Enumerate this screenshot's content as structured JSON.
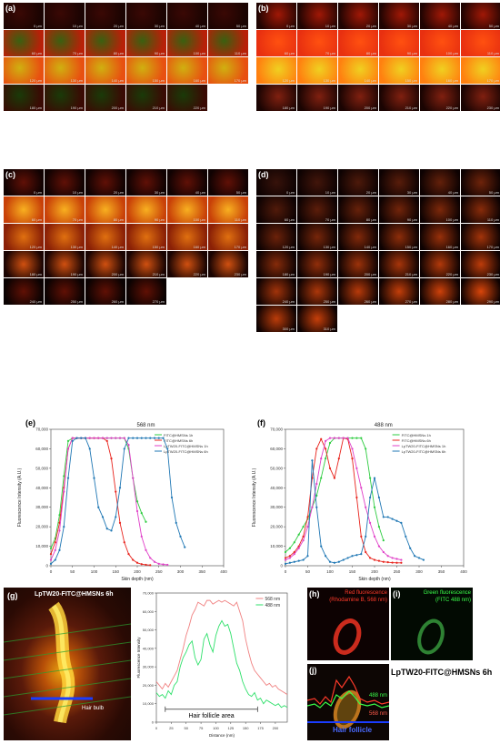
{
  "panels": {
    "a": {
      "label": "(a)",
      "theme": "mixed",
      "cols": 6,
      "x": 4,
      "y": 3,
      "depths": [
        "0 μm",
        "10 μm",
        "20 μm",
        "30 μm",
        "40 μm",
        "50 μm",
        "60 μm",
        "70 μm",
        "80 μm",
        "90 μm",
        "100 μm",
        "110 μm",
        "120 μm",
        "130 μm",
        "140 μm",
        "150 μm",
        "160 μm",
        "170 μm",
        "180 μm",
        "190 μm",
        "200 μm",
        "210 μm",
        "220 μm"
      ]
    },
    "b": {
      "label": "(b)",
      "theme": "bright",
      "cols": 6,
      "x": 282,
      "y": 3,
      "depths": [
        "0 μm",
        "10 μm",
        "20 μm",
        "30 μm",
        "40 μm",
        "50 μm",
        "60 μm",
        "70 μm",
        "80 μm",
        "90 μm",
        "100 μm",
        "110 μm",
        "120 μm",
        "130 μm",
        "140 μm",
        "150 μm",
        "160 μm",
        "170 μm",
        "180 μm",
        "190 μm",
        "200 μm",
        "210 μm",
        "220 μm",
        "230 μm"
      ]
    },
    "c": {
      "label": "(c)",
      "theme": "orange",
      "cols": 6,
      "x": 4,
      "y": 186,
      "depths": [
        "0 μm",
        "10 μm",
        "20 μm",
        "30 μm",
        "40 μm",
        "50 μm",
        "60 μm",
        "70 μm",
        "80 μm",
        "90 μm",
        "100 μm",
        "110 μm",
        "120 μm",
        "130 μm",
        "140 μm",
        "150 μm",
        "160 μm",
        "170 μm",
        "180 μm",
        "190 μm",
        "200 μm",
        "210 μm",
        "220 μm",
        "230 μm",
        "240 μm",
        "250 μm",
        "260 μm",
        "270 μm"
      ]
    },
    "d": {
      "label": "(d)",
      "theme": "dark",
      "cols": 6,
      "x": 282,
      "y": 186,
      "depths": [
        "0 μm",
        "10 μm",
        "20 μm",
        "30 μm",
        "40 μm",
        "50 μm",
        "60 μm",
        "70 μm",
        "80 μm",
        "90 μm",
        "100 μm",
        "110 μm",
        "120 μm",
        "130 μm",
        "140 μm",
        "150 μm",
        "160 μm",
        "170 μm",
        "180 μm",
        "190 μm",
        "200 μm",
        "210 μm",
        "220 μm",
        "230 μm",
        "240 μm",
        "250 μm",
        "260 μm",
        "270 μm",
        "280 μm",
        "290 μm",
        "300 μm",
        "310 μm"
      ]
    }
  },
  "chart_data": [
    {
      "id": "e",
      "label": "(e)",
      "type": "line",
      "title": "568 nm",
      "xlabel": "Skin depth (nm)",
      "ylabel": "Fluorescence Intensity (A.U.)",
      "xlim": [
        0,
        400
      ],
      "ylim": [
        0,
        70000
      ],
      "xticks": [
        0,
        50,
        100,
        150,
        200,
        250,
        300,
        350,
        400
      ],
      "yticks": [
        0,
        10000,
        20000,
        30000,
        40000,
        50000,
        60000,
        70000
      ],
      "ytick_labels": [
        "0",
        "10,000",
        "20,000",
        "30,000",
        "40,000",
        "50,000",
        "60,000",
        "70,000"
      ],
      "legend_position": "top-right",
      "series": [
        {
          "name": "FITC@HMSNs 1h",
          "color": "#2ecc40",
          "x": [
            0,
            10,
            20,
            30,
            40,
            50,
            60,
            70,
            80,
            90,
            100,
            110,
            120,
            130,
            140,
            150,
            160,
            170,
            180,
            190,
            200,
            210,
            220
          ],
          "y": [
            9000,
            14000,
            26000,
            46000,
            64000,
            65500,
            65500,
            65500,
            65500,
            65500,
            65500,
            65500,
            65500,
            65500,
            65500,
            65500,
            65500,
            65500,
            60000,
            45000,
            33000,
            27000,
            22500
          ]
        },
        {
          "name": "FITC@HMSNs 6h",
          "color": "#e8231c",
          "x": [
            0,
            10,
            20,
            30,
            40,
            50,
            60,
            70,
            80,
            90,
            100,
            110,
            120,
            130,
            140,
            150,
            160,
            170,
            180,
            190,
            200,
            210,
            220,
            230
          ],
          "y": [
            6000,
            12000,
            22000,
            40000,
            60000,
            65500,
            65500,
            65500,
            65500,
            65500,
            65500,
            65500,
            65500,
            64000,
            55000,
            38000,
            22000,
            12000,
            6000,
            3000,
            1500,
            800,
            500,
            300
          ]
        },
        {
          "name": "LpTW20-FITC@HMSNs 1h",
          "color": "#e040c8",
          "x": [
            0,
            10,
            20,
            30,
            40,
            50,
            60,
            70,
            80,
            90,
            100,
            110,
            120,
            130,
            140,
            150,
            160,
            170,
            180,
            190,
            200,
            210,
            220,
            230,
            240,
            250,
            260,
            270
          ],
          "y": [
            3000,
            8000,
            18000,
            38000,
            60000,
            65500,
            65500,
            65500,
            65500,
            65500,
            65500,
            65500,
            65500,
            65500,
            65500,
            65500,
            65500,
            65500,
            62000,
            45000,
            28000,
            15000,
            8000,
            4000,
            2000,
            1000,
            700,
            500
          ]
        },
        {
          "name": "LpTW20-FITC@HMSNs 6h",
          "color": "#1f77b4",
          "x": [
            0,
            10,
            20,
            30,
            40,
            50,
            60,
            70,
            80,
            90,
            100,
            110,
            120,
            130,
            140,
            150,
            160,
            170,
            180,
            190,
            200,
            210,
            220,
            230,
            240,
            250,
            260,
            270,
            280,
            290,
            300,
            310
          ],
          "y": [
            1000,
            3000,
            8000,
            20000,
            45000,
            64000,
            65500,
            65500,
            65500,
            60000,
            45000,
            30000,
            25000,
            19000,
            18000,
            25000,
            40000,
            60000,
            65500,
            65500,
            65500,
            65500,
            65500,
            65500,
            65500,
            65500,
            65500,
            60000,
            35000,
            22000,
            15000,
            9500
          ]
        }
      ]
    },
    {
      "id": "f",
      "label": "(f)",
      "type": "line",
      "title": "488 nm",
      "xlabel": "Skin depth (nm)",
      "ylabel": "Fluorescence Intensity (A.U.)",
      "xlim": [
        0,
        400
      ],
      "ylim": [
        0,
        70000
      ],
      "xticks": [
        0,
        50,
        100,
        150,
        200,
        250,
        300,
        350,
        400
      ],
      "yticks": [
        0,
        10000,
        20000,
        30000,
        40000,
        50000,
        60000,
        70000
      ],
      "ytick_labels": [
        "0",
        "10,000",
        "20,000",
        "30,000",
        "40,000",
        "50,000",
        "60,000",
        "70,000"
      ],
      "legend_position": "top-right",
      "series": [
        {
          "name": "FITC@HMSNs 1h",
          "color": "#2ecc40",
          "x": [
            0,
            10,
            20,
            30,
            40,
            50,
            60,
            70,
            80,
            90,
            100,
            110,
            120,
            130,
            140,
            150,
            160,
            170,
            180,
            190,
            200,
            210,
            220
          ],
          "y": [
            7000,
            9000,
            12000,
            16000,
            20000,
            24000,
            30000,
            36000,
            45000,
            55000,
            63000,
            65500,
            65500,
            65500,
            65500,
            65500,
            65500,
            65500,
            60000,
            45000,
            30000,
            20000,
            13000
          ]
        },
        {
          "name": "FITC@HMSNs 6h",
          "color": "#e8231c",
          "x": [
            0,
            10,
            20,
            30,
            40,
            50,
            60,
            70,
            80,
            90,
            100,
            110,
            120,
            130,
            140,
            150,
            160,
            170,
            180,
            190,
            200,
            210,
            220,
            230,
            240,
            250,
            260
          ],
          "y": [
            4000,
            5000,
            7000,
            10000,
            15000,
            25000,
            45000,
            60000,
            65000,
            60000,
            50000,
            45000,
            55000,
            65500,
            65000,
            55000,
            35000,
            15000,
            7000,
            4000,
            3000,
            2500,
            2000,
            1800,
            1600,
            1500,
            1500
          ]
        },
        {
          "name": "LpTW20-FITC@HMSNs 1h",
          "color": "#e040c8",
          "x": [
            0,
            10,
            20,
            30,
            40,
            50,
            60,
            70,
            80,
            90,
            100,
            110,
            120,
            130,
            140,
            150,
            160,
            170,
            180,
            190,
            200,
            210,
            220,
            230,
            240,
            250,
            260
          ],
          "y": [
            3000,
            4000,
            6000,
            9000,
            13000,
            20000,
            30000,
            42000,
            55000,
            64000,
            65500,
            65500,
            65500,
            65500,
            65500,
            60000,
            50000,
            40000,
            30000,
            22000,
            15000,
            10000,
            7000,
            5000,
            4000,
            3500,
            3000
          ]
        },
        {
          "name": "LpTW20-FITC@HMSNs 6h",
          "color": "#1f77b4",
          "x": [
            0,
            10,
            20,
            30,
            40,
            50,
            60,
            70,
            80,
            90,
            100,
            110,
            120,
            130,
            140,
            150,
            160,
            170,
            180,
            190,
            200,
            210,
            220,
            230,
            240,
            250,
            260,
            270,
            280,
            290,
            300,
            310
          ],
          "y": [
            1000,
            1500,
            2000,
            2500,
            3000,
            5000,
            54000,
            30000,
            10000,
            5000,
            2000,
            1500,
            2000,
            3000,
            4000,
            5000,
            5500,
            6000,
            15000,
            35000,
            45000,
            35000,
            25000,
            25000,
            24000,
            23000,
            22000,
            15000,
            9000,
            5000,
            4000,
            3000
          ]
        }
      ]
    },
    {
      "id": "g-profile",
      "type": "line",
      "title": "",
      "xlabel": "Distance (nm)",
      "ylabel": "Fluorescence Intensity",
      "xlim": [
        0,
        220
      ],
      "ylim": [
        0,
        70000
      ],
      "xticks": [
        0,
        25,
        50,
        75,
        100,
        125,
        150,
        175,
        200
      ],
      "yticks": [
        0,
        10000,
        20000,
        30000,
        40000,
        50000,
        60000,
        70000
      ],
      "ytick_labels": [
        "0",
        "10,000",
        "20,000",
        "30,000",
        "40,000",
        "50,000",
        "60,000",
        "70,000"
      ],
      "legend_position": "top-right",
      "annotation": "Hair follicle area",
      "annotation_range": [
        15,
        170
      ],
      "series": [
        {
          "name": "568 nm",
          "color": "#f08080",
          "x": [
            0,
            5,
            10,
            15,
            20,
            25,
            30,
            35,
            40,
            45,
            50,
            55,
            60,
            65,
            70,
            75,
            80,
            85,
            90,
            95,
            100,
            105,
            110,
            115,
            120,
            125,
            130,
            135,
            140,
            145,
            150,
            155,
            160,
            165,
            170,
            175,
            180,
            185,
            190,
            195,
            200,
            205,
            210,
            215,
            220
          ],
          "y": [
            22000,
            20000,
            18000,
            21000,
            19000,
            22000,
            25000,
            28000,
            34000,
            40000,
            47000,
            52000,
            58000,
            61000,
            65000,
            64000,
            63000,
            66000,
            66000,
            64000,
            65000,
            66000,
            65000,
            66000,
            65000,
            64000,
            63000,
            65000,
            60000,
            55000,
            45000,
            38000,
            32000,
            28000,
            26000,
            24000,
            22000,
            20000,
            21000,
            19000,
            20000,
            18000,
            17000,
            16000,
            15000
          ]
        },
        {
          "name": "488 nm",
          "color": "#2ee06a",
          "x": [
            0,
            5,
            10,
            15,
            20,
            25,
            30,
            35,
            40,
            45,
            50,
            55,
            60,
            65,
            70,
            75,
            80,
            85,
            90,
            95,
            100,
            105,
            110,
            115,
            120,
            125,
            130,
            135,
            140,
            145,
            150,
            155,
            160,
            165,
            170,
            175,
            180,
            185,
            190,
            195,
            200,
            205,
            210,
            215,
            220
          ],
          "y": [
            16000,
            14000,
            15000,
            13000,
            17000,
            15000,
            20000,
            22000,
            30000,
            35000,
            38000,
            42000,
            44000,
            35000,
            31000,
            34000,
            45000,
            48000,
            42000,
            38000,
            47000,
            52000,
            55000,
            52000,
            53000,
            48000,
            40000,
            32000,
            28000,
            22000,
            18000,
            15000,
            14000,
            16000,
            12000,
            13000,
            10000,
            12000,
            11000,
            10000,
            9000,
            10000,
            8000,
            9000,
            8000
          ]
        }
      ]
    }
  ],
  "panel_g": {
    "label": "(g)",
    "title": "LpTW20-FITC@HMSNs 6h",
    "annotation": "Hair bulb"
  },
  "panel_h": {
    "label": "(h)",
    "title_line1": "Red fluorescence",
    "title_line2": "(Rhodamine B, 568 nm)"
  },
  "panel_i": {
    "label": "(i)",
    "title_line1": "Green fluorescence",
    "title_line2": "(FITC 488 nm)"
  },
  "panel_j": {
    "label": "(j)",
    "green_tag": "488 nm",
    "red_tag": "568 nm",
    "blue_tag": "Hair follicle"
  },
  "side_caption": "LpTW20-FITC@HMSNs 6h"
}
